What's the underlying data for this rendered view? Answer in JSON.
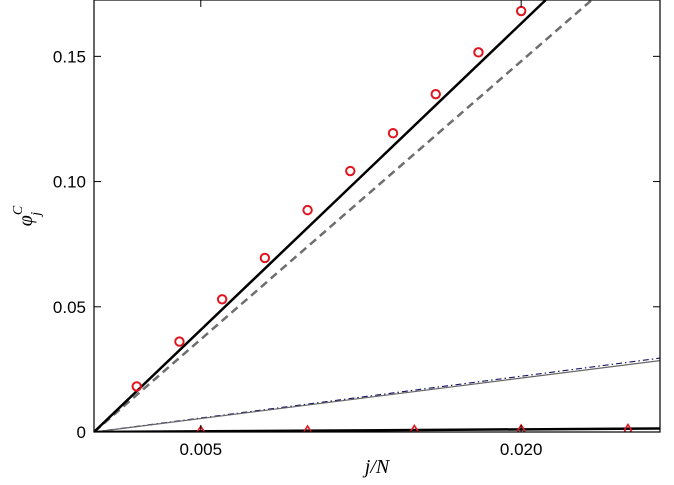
{
  "chart_data": {
    "type": "line",
    "title": "",
    "xlabel": "j/N",
    "ylabel": "φ_j^C",
    "ylabel_base": "φ",
    "ylabel_sub": "j",
    "ylabel_sup": "C",
    "xlim": [
      0,
      0.0265
    ],
    "ylim": [
      0,
      0.1725
    ],
    "xticks": [
      0.005,
      0.02
    ],
    "xtick_labels": [
      "0.005",
      "0.020"
    ],
    "yticks": [
      0,
      0.05,
      0.1,
      0.15
    ],
    "ytick_labels": [
      "0",
      "0.05",
      "0.10",
      "0.15"
    ],
    "grid": false,
    "legend": "none",
    "series": [
      {
        "kind": "line",
        "style": "dashed",
        "color": "#6e6e6e",
        "width": 2.5,
        "x": [
          0,
          0.0233
        ],
        "y": [
          0,
          0.1725
        ]
      },
      {
        "kind": "line",
        "style": "solid",
        "color": "#000000",
        "width": 2.5,
        "x": [
          0,
          0.02115
        ],
        "y": [
          0,
          0.1725
        ]
      },
      {
        "kind": "line",
        "style": "dashdot",
        "color": "#1a1a66",
        "width": 1.2,
        "x": [
          0,
          0.0265
        ],
        "y": [
          0,
          0.0295
        ]
      },
      {
        "kind": "line",
        "style": "solid",
        "color": "#666666",
        "width": 1.2,
        "x": [
          0,
          0.0265
        ],
        "y": [
          0,
          0.0285
        ]
      },
      {
        "kind": "line",
        "style": "solid",
        "color": "#000000",
        "width": 2.5,
        "x": [
          0,
          0.0265
        ],
        "y": [
          0,
          0.0014
        ]
      },
      {
        "kind": "markers",
        "marker": "circle",
        "color": "#e0141e",
        "x": [
          0.002,
          0.004,
          0.006,
          0.008,
          0.01,
          0.012,
          0.014,
          0.016,
          0.018,
          0.02
        ],
        "y": [
          0.0182,
          0.0361,
          0.053,
          0.0695,
          0.0886,
          0.1042,
          0.1193,
          0.1349,
          0.1516,
          0.1681
        ]
      },
      {
        "kind": "markers",
        "marker": "diamond",
        "color": "#e0141e",
        "x": [
          0.005,
          0.01,
          0.015,
          0.02,
          0.025
        ],
        "y": [
          0.0001,
          0.0002,
          0.0004,
          0.0006,
          0.0008
        ]
      }
    ]
  }
}
